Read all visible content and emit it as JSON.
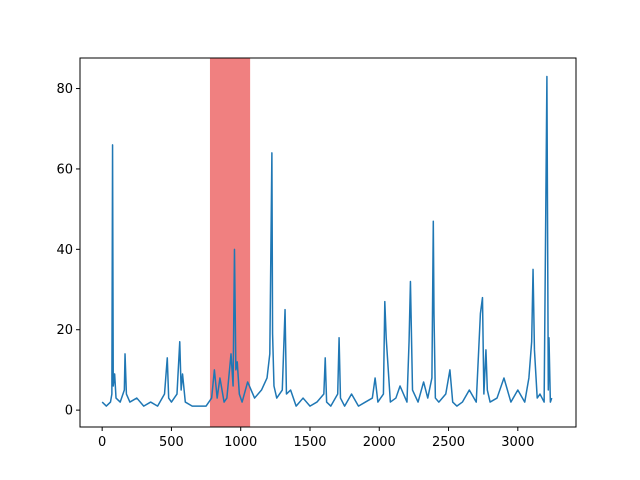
{
  "chart_data": {
    "type": "line",
    "title": "",
    "xlabel": "",
    "ylabel": "",
    "xlim": [
      -160,
      3420
    ],
    "ylim": [
      -4.2,
      87.6
    ],
    "x_ticks": [
      0,
      500,
      1000,
      1500,
      2000,
      2500,
      3000
    ],
    "x_tick_labels": [
      "0",
      "500",
      "1000",
      "1500",
      "2000",
      "2500",
      "3000"
    ],
    "y_ticks": [
      0,
      20,
      40,
      60,
      80
    ],
    "y_tick_labels": [
      "0",
      "20",
      "40",
      "60",
      "80"
    ],
    "grid": false,
    "legend": "none",
    "highlight_span": {
      "x_start": 778,
      "x_end": 1068,
      "color": "#f08080"
    },
    "series": [
      {
        "color": "#1f77b4",
        "x": [
          0,
          30,
          60,
          70,
          75,
          80,
          90,
          100,
          130,
          160,
          165,
          175,
          200,
          250,
          300,
          350,
          400,
          450,
          470,
          480,
          500,
          540,
          560,
          570,
          580,
          600,
          650,
          700,
          750,
          790,
          810,
          830,
          850,
          880,
          900,
          930,
          945,
          955,
          965,
          975,
          990,
          1010,
          1050,
          1100,
          1150,
          1190,
          1210,
          1225,
          1230,
          1240,
          1260,
          1300,
          1320,
          1330,
          1360,
          1400,
          1450,
          1500,
          1550,
          1600,
          1610,
          1620,
          1650,
          1700,
          1710,
          1720,
          1750,
          1800,
          1850,
          1900,
          1950,
          1970,
          1990,
          2030,
          2040,
          2050,
          2080,
          2120,
          2150,
          2200,
          2215,
          2225,
          2240,
          2280,
          2320,
          2350,
          2380,
          2390,
          2395,
          2405,
          2430,
          2480,
          2510,
          2530,
          2560,
          2600,
          2650,
          2700,
          2730,
          2745,
          2755,
          2770,
          2780,
          2800,
          2850,
          2900,
          2950,
          3000,
          3050,
          3080,
          3100,
          3110,
          3120,
          3140,
          3160,
          3190,
          3210,
          3220,
          3225,
          3235,
          3245
        ],
        "y": [
          2,
          1,
          2,
          4,
          66,
          6,
          9,
          3,
          2,
          5,
          14,
          4,
          2,
          3,
          1,
          2,
          1,
          4,
          13,
          3,
          2,
          4,
          17,
          5,
          9,
          2,
          1,
          1,
          1,
          3,
          10,
          3,
          8,
          2,
          3,
          14,
          6,
          40,
          10,
          12,
          4,
          2,
          7,
          3,
          5,
          8,
          14,
          64,
          19,
          6,
          3,
          5,
          25,
          4,
          5,
          1,
          3,
          1,
          2,
          4,
          13,
          2,
          1,
          4,
          18,
          3,
          1,
          4,
          1,
          2,
          3,
          8,
          2,
          4,
          27,
          18,
          2,
          3,
          6,
          2,
          17,
          32,
          5,
          2,
          7,
          3,
          8,
          47,
          24,
          3,
          2,
          4,
          10,
          2,
          1,
          2,
          5,
          2,
          24,
          28,
          4,
          15,
          5,
          2,
          3,
          8,
          2,
          5,
          2,
          8,
          17,
          35,
          15,
          3,
          4,
          2,
          83,
          5,
          18,
          2,
          3
        ]
      }
    ]
  }
}
